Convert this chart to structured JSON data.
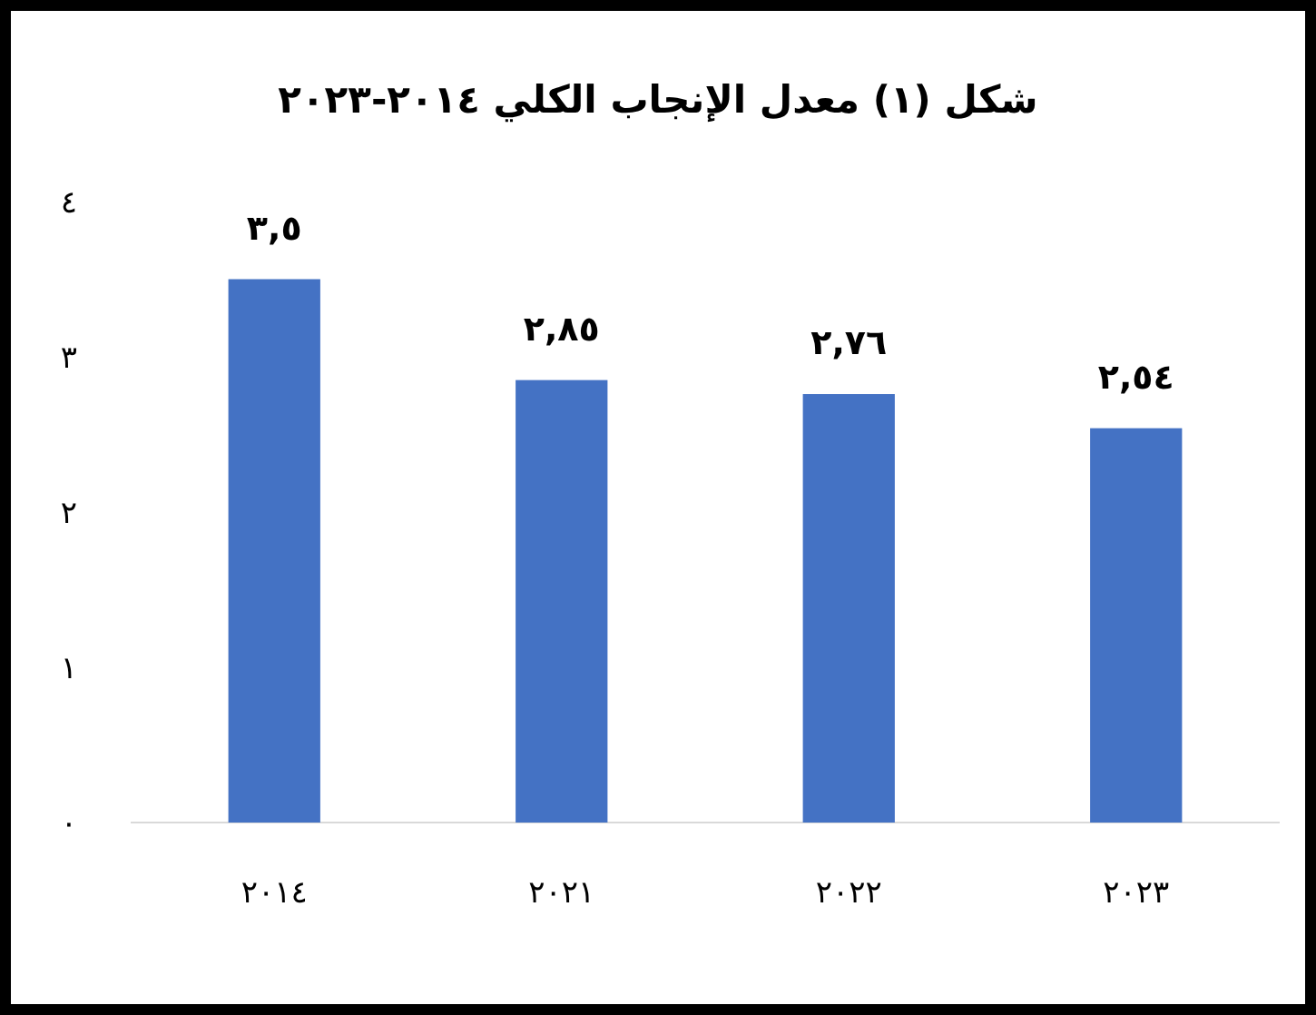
{
  "chart_data": {
    "type": "bar",
    "title": "شكل (١) معدل الإنجاب الكلي ٢٠١٤-٢٠٢٣",
    "categories": [
      "٢٠١٤",
      "٢٠٢١",
      "٢٠٢٢",
      "٢٠٢٣"
    ],
    "values": [
      3.5,
      2.85,
      2.76,
      2.54
    ],
    "value_labels": [
      "٣,٥",
      "٢,٨٥",
      "٢,٧٦",
      "٢,٥٤"
    ],
    "color": "#4472c4",
    "ylim": [
      0,
      4
    ],
    "yticks": [
      {
        "value": 0,
        "label": "٠"
      },
      {
        "value": 1,
        "label": "١"
      },
      {
        "value": 2,
        "label": "٢"
      },
      {
        "value": 3,
        "label": "٣"
      },
      {
        "value": 4,
        "label": "٤"
      }
    ]
  }
}
